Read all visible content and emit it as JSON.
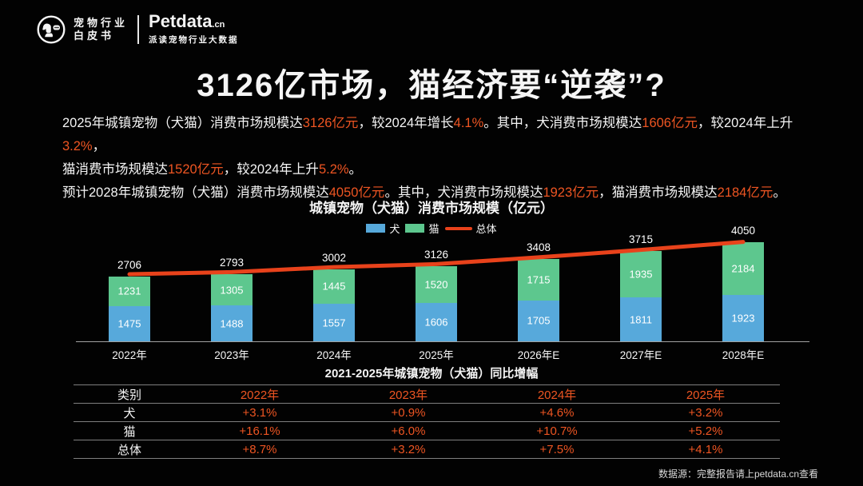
{
  "header": {
    "logo_line1": "宠物行业",
    "logo_line2": "白皮书",
    "brand": "Petdata",
    "brand_suffix": ".cn",
    "tagline": "派读宠物行业大数据"
  },
  "title": "3126亿市场，猫经济要“逆袭”?",
  "intro": {
    "lines": [
      [
        {
          "t": "2025年城镇宠物（犬猫）消费市场规模达"
        },
        {
          "t": "3126亿元",
          "hl": true
        },
        {
          "t": "，较2024年增长"
        },
        {
          "t": "4.1%",
          "hl": true
        },
        {
          "t": "。其中，犬消费市场规模达"
        },
        {
          "t": "1606亿元",
          "hl": true
        },
        {
          "t": "，较2024年上升"
        },
        {
          "t": "3.2%",
          "hl": true
        },
        {
          "t": "，"
        }
      ],
      [
        {
          "t": "猫消费市场规模达"
        },
        {
          "t": "1520亿元",
          "hl": true
        },
        {
          "t": "，较2024年上升"
        },
        {
          "t": "5.2%",
          "hl": true
        },
        {
          "t": "。"
        }
      ],
      [
        {
          "t": "预计2028年城镇宠物（犬猫）消费市场规模达"
        },
        {
          "t": "4050亿元",
          "hl": true
        },
        {
          "t": "。其中，犬消费市场规模达"
        },
        {
          "t": "1923亿元",
          "hl": true
        },
        {
          "t": "，猫消费市场规模达"
        },
        {
          "t": "2184亿元",
          "hl": true
        },
        {
          "t": "。"
        }
      ]
    ]
  },
  "chart": {
    "title": "城镇宠物（犬猫）消费市场规模（亿元）",
    "legend": [
      {
        "label": "犬",
        "color": "#57a9db",
        "type": "swatch"
      },
      {
        "label": "猫",
        "color": "#5dc78e",
        "type": "swatch"
      },
      {
        "label": "总体",
        "color": "#e8421b",
        "type": "line"
      }
    ]
  },
  "chart_data": {
    "type": "bar",
    "stacked": true,
    "title": "城镇宠物（犬猫）消费市场规模（亿元）",
    "categories": [
      "2022年",
      "2023年",
      "2024年",
      "2025年",
      "2026年E",
      "2027年E",
      "2028年E"
    ],
    "series": [
      {
        "name": "犬",
        "type": "bar",
        "color": "#57a9db",
        "values": [
          1475,
          1488,
          1557,
          1606,
          1705,
          1811,
          1923
        ]
      },
      {
        "name": "猫",
        "type": "bar",
        "color": "#5dc78e",
        "values": [
          1231,
          1305,
          1445,
          1520,
          1715,
          1935,
          2184
        ]
      },
      {
        "name": "总体",
        "type": "line",
        "color": "#e8421b",
        "values": [
          2706,
          2793,
          3002,
          3126,
          3408,
          3715,
          4050
        ]
      }
    ],
    "ylim": [
      0,
      4300
    ],
    "grid": false,
    "legend_position": "top",
    "data_labels": true
  },
  "table": {
    "title": "2021-2025年城镇宠物（犬猫）同比增幅",
    "headers": [
      "类别",
      "2022年",
      "2023年",
      "2024年",
      "2025年"
    ],
    "rows": [
      {
        "label": "犬",
        "values": [
          "+3.1%",
          "+0.9%",
          "+4.6%",
          "+3.2%"
        ]
      },
      {
        "label": "猫",
        "values": [
          "+16.1%",
          "+6.0%",
          "+10.7%",
          "+5.2%"
        ]
      },
      {
        "label": "总体",
        "values": [
          "+8.7%",
          "+3.2%",
          "+7.5%",
          "+4.1%"
        ]
      }
    ]
  },
  "footer": {
    "source": "数据源：完整报告请上petdata.cn查看"
  },
  "colors": {
    "background": "#020202",
    "accent": "#ee5522",
    "dog_bar": "#57a9db",
    "cat_bar": "#5dc78e",
    "total_line": "#e8421b",
    "axis": "#a2a2a2",
    "table_border": "#7f7f7f"
  }
}
